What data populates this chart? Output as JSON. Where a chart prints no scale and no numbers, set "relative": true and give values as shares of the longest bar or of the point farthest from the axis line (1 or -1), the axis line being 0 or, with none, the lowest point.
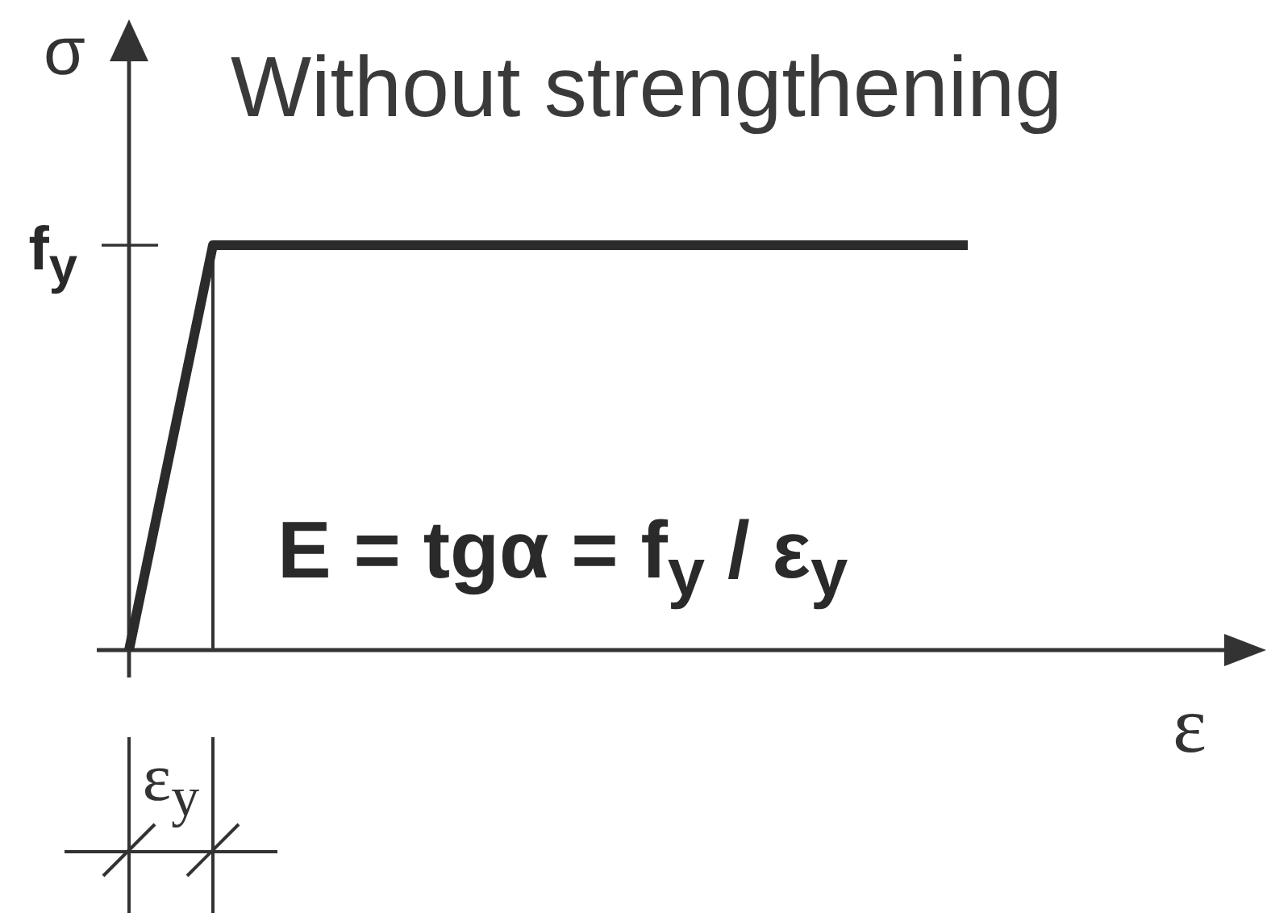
{
  "chart_data": {
    "type": "line",
    "title": "Without strengthening",
    "xlabel": "ε",
    "ylabel": "σ",
    "categories": [
      null,
      null,
      null,
      null,
      null,
      null,
      null,
      null,
      null,
      null,
      null
    ],
    "values": [
      0,
      1,
      1,
      1,
      1,
      1,
      1,
      1,
      1,
      1,
      1
    ],
    "color": "#2b2b2b",
    "relative": true,
    "ref_lines": [
      {
        "axis": "y",
        "value": 1,
        "label": "f$_{y}$"
      }
    ],
    "annotations": [
      "E = tgα = f$_{y}$ / ε$_{y}$",
      "ε$_{y}$"
    ]
  }
}
